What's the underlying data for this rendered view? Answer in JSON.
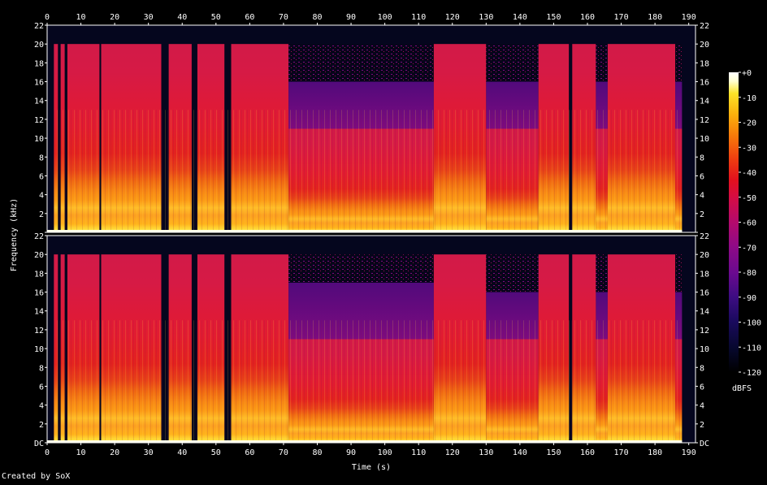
{
  "chart_data": {
    "type": "heatmap",
    "title": "",
    "xlabel": "Time (s)",
    "ylabel": "Frequency (kHz)",
    "xlim": [
      0,
      192
    ],
    "ylim": [
      0,
      22
    ],
    "x_ticks": [
      "0",
      "10",
      "20",
      "30",
      "40",
      "50",
      "60",
      "70",
      "80",
      "90",
      "100",
      "110",
      "120",
      "130",
      "140",
      "150",
      "160",
      "170",
      "180",
      "190"
    ],
    "y_tick_labels": [
      "DC",
      "2",
      "4",
      "6",
      "8",
      "10",
      "12",
      "14",
      "16",
      "18",
      "20",
      "22"
    ],
    "channels": [
      {
        "name": "",
        "highband_mask": [
          {
            "x0": 2,
            "x1": 3.2,
            "top_khz": 20
          },
          {
            "x0": 4,
            "x1": 5.2,
            "top_khz": 20
          },
          {
            "x0": 6,
            "x1": 15.5,
            "top_khz": 20
          },
          {
            "x0": 16,
            "x1": 33.8,
            "top_khz": 20
          },
          {
            "x0": 36,
            "x1": 42.8,
            "top_khz": 20
          },
          {
            "x0": 44.5,
            "x1": 52.5,
            "top_khz": 20
          },
          {
            "x0": 54.5,
            "x1": 71.5,
            "top_khz": 20
          },
          {
            "x0": 71.5,
            "x1": 114.5,
            "top_khz": 16
          },
          {
            "x0": 114.5,
            "x1": 130,
            "top_khz": 20
          },
          {
            "x0": 130,
            "x1": 145.5,
            "top_khz": 16
          },
          {
            "x0": 145.5,
            "x1": 154.5,
            "top_khz": 20
          },
          {
            "x0": 155.5,
            "x1": 162.5,
            "top_khz": 20
          },
          {
            "x0": 162.5,
            "x1": 166,
            "top_khz": 16
          },
          {
            "x0": 166,
            "x1": 186,
            "top_khz": 20
          },
          {
            "x0": 186,
            "x1": 188,
            "top_khz": 16
          }
        ]
      },
      {
        "name": "",
        "highband_mask": [
          {
            "x0": 2,
            "x1": 3.2,
            "top_khz": 20
          },
          {
            "x0": 4,
            "x1": 5.2,
            "top_khz": 20
          },
          {
            "x0": 6,
            "x1": 15.5,
            "top_khz": 20
          },
          {
            "x0": 16,
            "x1": 33.8,
            "top_khz": 20
          },
          {
            "x0": 36,
            "x1": 42.8,
            "top_khz": 20
          },
          {
            "x0": 44.5,
            "x1": 52.5,
            "top_khz": 20
          },
          {
            "x0": 54.5,
            "x1": 71.5,
            "top_khz": 20
          },
          {
            "x0": 71.5,
            "x1": 114.5,
            "top_khz": 17
          },
          {
            "x0": 114.5,
            "x1": 130,
            "top_khz": 20
          },
          {
            "x0": 130,
            "x1": 145.5,
            "top_khz": 16
          },
          {
            "x0": 145.5,
            "x1": 154.5,
            "top_khz": 20
          },
          {
            "x0": 155.5,
            "x1": 162.5,
            "top_khz": 20
          },
          {
            "x0": 162.5,
            "x1": 166,
            "top_khz": 16
          },
          {
            "x0": 166,
            "x1": 186,
            "top_khz": 20
          },
          {
            "x0": 186,
            "x1": 188,
            "top_khz": 16
          }
        ]
      }
    ],
    "colorbar": {
      "label": "dBFS",
      "range": [
        -120,
        0
      ],
      "ticks": [
        "+0",
        "-10",
        "-20",
        "-30",
        "-40",
        "-50",
        "-60",
        "-70",
        "-80",
        "-90",
        "-100",
        "-110",
        "-120"
      ]
    },
    "grid": false,
    "legend": "none"
  },
  "footer": {
    "credit": "Created by SoX"
  },
  "colors": {
    "background": "#000000",
    "axis": "#ffffff",
    "text": "#ffffff",
    "colormap": [
      "#000000",
      "#07082e",
      "#1a0a5e",
      "#3d0c82",
      "#6a0a8f",
      "#8f0a86",
      "#b30a6c",
      "#d40c45",
      "#e3101e",
      "#ef3d10",
      "#f77b0a",
      "#fbb10c",
      "#fce328",
      "#ffffd0",
      "#ffffff"
    ]
  }
}
